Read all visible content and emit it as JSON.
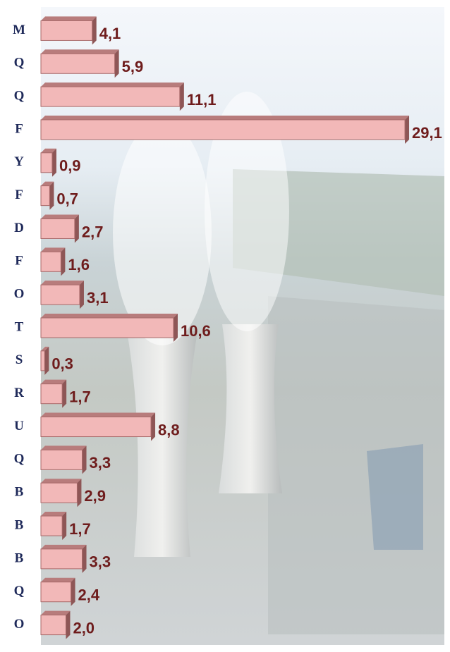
{
  "chart_data": {
    "type": "bar",
    "orientation": "horizontal",
    "categories": [
      "M",
      "Q",
      "Q",
      "F",
      "Y",
      "F",
      "D",
      "F",
      "O",
      "T",
      "S",
      "R",
      "U",
      "Q",
      "B",
      "B",
      "B",
      "Q",
      "O"
    ],
    "values": [
      4.1,
      5.9,
      11.1,
      29.1,
      0.9,
      0.7,
      2.7,
      1.6,
      3.1,
      10.6,
      0.3,
      1.7,
      8.8,
      3.3,
      2.9,
      1.7,
      3.3,
      2.4,
      2.0
    ],
    "value_labels": [
      "4,1",
      "5,9",
      "11,1",
      "29,1",
      "0,9",
      "0,7",
      "2,7",
      "1,6",
      "3,1",
      "10,6",
      "0,3",
      "1,7",
      "8,8",
      "3,3",
      "2,9",
      "1,7",
      "3,3",
      "2,4",
      "2,0"
    ],
    "color": "#f2b8b8",
    "xlim": [
      0,
      30
    ]
  }
}
